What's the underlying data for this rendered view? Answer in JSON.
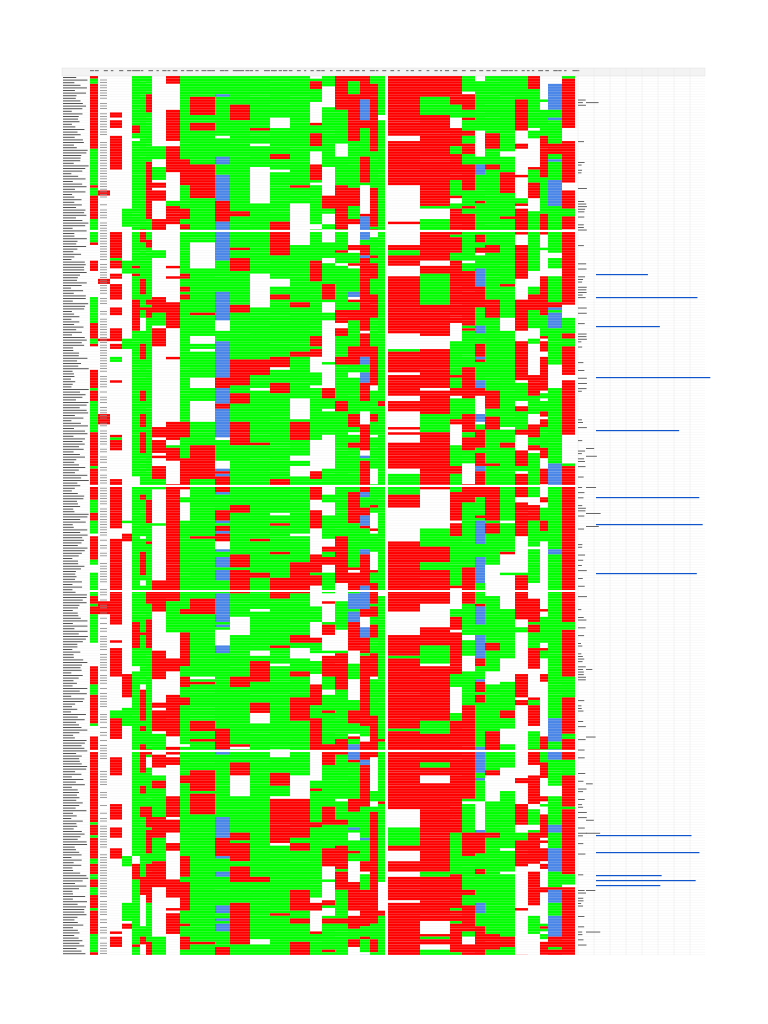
{
  "sheet": {
    "palette": {
      "red": "#ff0000",
      "green": "#00ff00",
      "blue": "#4a86e8",
      "link": "#1155cc",
      "grid": "#e2e2e2"
    }
  }
}
